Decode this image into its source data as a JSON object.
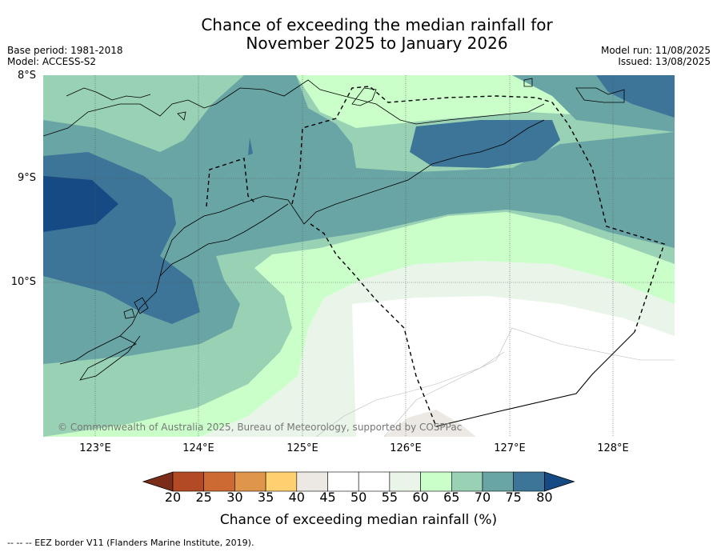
{
  "title": {
    "line1": "Chance of exceeding the median rainfall for",
    "line2": "November 2025 to January 2026"
  },
  "meta_left": {
    "base_period": "Base period: 1981-2018",
    "model": "Model: ACCESS-S2"
  },
  "meta_right": {
    "model_run": "Model run: 11/08/2025",
    "issued": "Issued: 13/08/2025"
  },
  "lat_labels": [
    "8°S",
    "9°S",
    "10°S"
  ],
  "lon_labels": [
    "123°E",
    "124°E",
    "125°E",
    "126°E",
    "127°E",
    "128°E"
  ],
  "copyright": "© Commonwealth of Australia 2025, Bureau of Meteorology, supported by COSPPac",
  "colorbar": {
    "title": "Chance of exceeding median rainfall (%)",
    "ticks": [
      "20",
      "25",
      "30",
      "35",
      "40",
      "45",
      "50",
      "55",
      "60",
      "65",
      "70",
      "75",
      "80"
    ],
    "colors": [
      "#7b2d1a",
      "#b24a26",
      "#cd6a34",
      "#e0964a",
      "#ffd070",
      "#ece9e4",
      "#ffffff",
      "#ffffff",
      "#eaf5e9",
      "#caffca",
      "#99d1b4",
      "#6aa5a5",
      "#3d7599",
      "#154a85"
    ]
  },
  "legend_note": "--  --  -- EEZ border V11 (Flanders Marine Institute, 2019)."
}
